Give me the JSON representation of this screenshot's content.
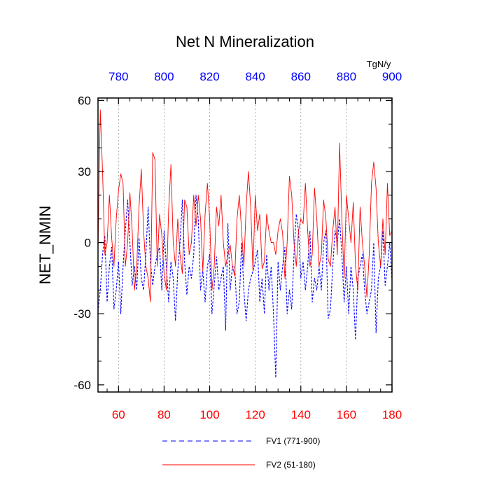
{
  "chart_data": {
    "type": "line",
    "title": "Net N Mineralization",
    "ylabel": "NET_NMIN",
    "units": "TgN/y",
    "ylim": [
      -63,
      61
    ],
    "yticks": [
      60,
      30,
      0,
      -30,
      -60
    ],
    "ytick_labels": [
      "60",
      "30",
      "0",
      "-30",
      "-60"
    ],
    "bottom_axis": {
      "range": [
        51,
        180
      ],
      "ticks": [
        60,
        80,
        100,
        120,
        140,
        160,
        180
      ],
      "labels": [
        "60",
        "80",
        "100",
        "120",
        "140",
        "160",
        "180"
      ],
      "color": "#ff0000"
    },
    "top_axis": {
      "range": [
        771,
        900
      ],
      "ticks": [
        780,
        800,
        820,
        840,
        860,
        880,
        900
      ],
      "labels": [
        "780",
        "800",
        "820",
        "840",
        "860",
        "880",
        "900"
      ],
      "color": "#0000ff"
    },
    "grid": "vertical dotted",
    "legend_position": "bottom",
    "series": [
      {
        "name": "FV1 (771-900)",
        "axis": "top",
        "color": "#0000ff",
        "style": "dashed",
        "x_start": 771,
        "values": [
          -29,
          -20,
          -5,
          3,
          -25,
          -10,
          -2,
          -28,
          -20,
          -8,
          -30,
          -10,
          5,
          18,
          0,
          -18,
          -10,
          -20,
          2,
          -15,
          -20,
          -5,
          15,
          -8,
          -18,
          -10,
          -5,
          -2,
          -20,
          5,
          -10,
          -25,
          -8,
          -15,
          -33,
          -12,
          0,
          18,
          -8,
          -22,
          -10,
          -15,
          -5,
          20,
          10,
          -20,
          -12,
          -25,
          -10,
          -5,
          -30,
          -18,
          -6,
          -20,
          -15,
          -10,
          -37,
          8,
          -20,
          -10,
          -10,
          -30,
          -25,
          0,
          -20,
          -33,
          -20,
          -15,
          -12,
          -8,
          -3,
          -25,
          -15,
          -30,
          -5,
          -20,
          -10,
          -30,
          -57,
          -8,
          -20,
          -10,
          -2,
          -30,
          -20,
          -28,
          -5,
          12,
          5,
          -15,
          -8,
          -20,
          -10,
          5,
          -25,
          -15,
          -20,
          -10,
          -20,
          0,
          5,
          -32,
          -28,
          -10,
          5,
          0,
          10,
          -5,
          -25,
          -10,
          -30,
          -10,
          -20,
          -41,
          -15,
          -10,
          -5,
          -20,
          -30,
          -25,
          -20,
          0,
          -38,
          -15,
          -10,
          5,
          -18,
          -10,
          0,
          -16
        ]
      },
      {
        "name": "FV2 (51-180)",
        "axis": "bottom",
        "color": "#ff0000",
        "style": "solid",
        "x_start": 51,
        "values": [
          -3,
          56,
          30,
          -5,
          0,
          20,
          2,
          -10,
          10,
          22,
          29,
          25,
          -10,
          0,
          21,
          5,
          -20,
          -10,
          15,
          31,
          5,
          -10,
          -15,
          -25,
          38,
          35,
          -10,
          12,
          3,
          -13,
          -20,
          14,
          33,
          0,
          -10,
          10,
          -5,
          -13,
          18,
          15,
          -5,
          0,
          20,
          7,
          20,
          10,
          -12,
          12,
          25,
          10,
          -20,
          -10,
          15,
          7,
          20,
          0,
          -10,
          -5,
          -1,
          -10,
          -14,
          10,
          20,
          5,
          -10,
          15,
          30,
          15,
          -12,
          20,
          5,
          12,
          -11,
          -8,
          12,
          5,
          0,
          0,
          -5,
          5,
          10,
          4,
          -15,
          0,
          28,
          20,
          0,
          -10,
          5,
          10,
          8,
          25,
          5,
          -10,
          -5,
          23,
          10,
          -10,
          -5,
          18,
          10,
          -7,
          -10,
          5,
          15,
          -5,
          42,
          10,
          -15,
          20,
          10,
          0,
          17,
          -10,
          -20,
          15,
          0,
          -10,
          -23,
          -5,
          25,
          34,
          23,
          0,
          -10,
          10,
          -5,
          25,
          3,
          5
        ]
      }
    ]
  }
}
